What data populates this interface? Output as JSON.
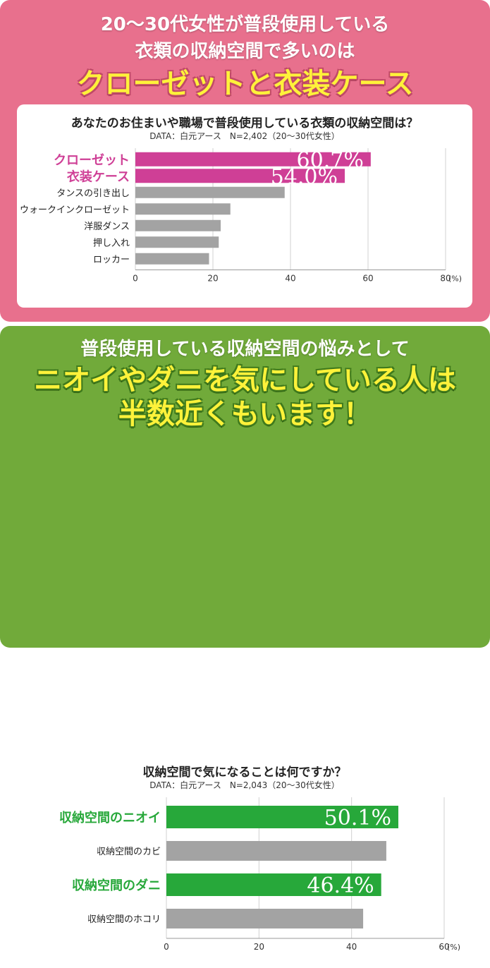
{
  "panel1": {
    "heading_line1": "20〜30代女性が普段使用している",
    "heading_line2": "衣類の収納空間で多いのは",
    "heading_line3": "クローゼットと衣装ケース",
    "accent_color": "#cf3f96",
    "bg_color": "#e8708d"
  },
  "panel2": {
    "heading_line1": "普段使用している収納空間の悩みとして",
    "heading_line2": "ニオイやダニを気にしている人は",
    "heading_line3": "半数近くもいます！",
    "accent_color": "#27a83a",
    "bg_color": "#71aa3a"
  },
  "chart_data": [
    {
      "type": "bar",
      "orientation": "horizontal",
      "title": "あなたのお住まいや職場で普段使用している衣類の収納空間は？",
      "subtitle": "DATA：白元アース　N=2,402（20〜30代女性）",
      "categories": [
        "クローゼット",
        "衣装ケース",
        "タンスの引き出し",
        "ウォークインクローゼット",
        "洋服ダンス",
        "押し入れ",
        "ロッカー"
      ],
      "values": [
        60.7,
        54.0,
        38.5,
        24.5,
        22.0,
        21.5,
        19.0
      ],
      "highlighted": [
        true,
        true,
        false,
        false,
        false,
        false,
        false
      ],
      "value_labels": [
        "60.7%",
        "54.0%",
        "",
        "",
        "",
        "",
        ""
      ],
      "xlim": [
        0,
        80
      ],
      "xticks": [
        "0",
        "20",
        "40",
        "60",
        "80"
      ],
      "unit": "(%)",
      "highlight_color": "#cf3f96",
      "bar_color": "#a3a3a3",
      "grid": true
    },
    {
      "type": "bar",
      "orientation": "horizontal",
      "title": "収納空間で気になることは何ですか？",
      "subtitle": "DATA：白元アース　N=2,043（20〜30代女性）",
      "categories": [
        "収納空間のニオイ",
        "収納空間のカビ",
        "収納空間のダニ",
        "収納空間のホコリ"
      ],
      "values": [
        50.1,
        47.5,
        46.4,
        42.5
      ],
      "highlighted": [
        true,
        false,
        true,
        false
      ],
      "value_labels": [
        "50.1%",
        "",
        "46.4%",
        ""
      ],
      "xlim": [
        0,
        60
      ],
      "xticks": [
        "0",
        "20",
        "40",
        "60"
      ],
      "unit": "(%)",
      "highlight_color": "#27a83a",
      "bar_color": "#a3a3a3",
      "grid": true
    }
  ]
}
